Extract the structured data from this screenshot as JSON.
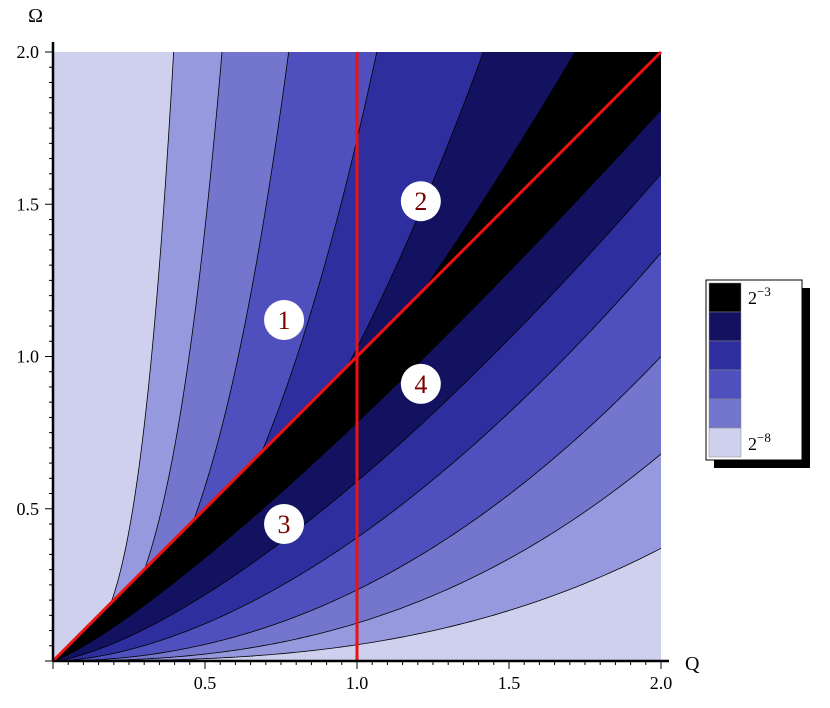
{
  "chart_data": {
    "type": "contour",
    "xlabel": "Q",
    "ylabel": "Ω",
    "xlim": [
      0,
      2.0
    ],
    "ylim": [
      0,
      2.0
    ],
    "x_ticks": [
      "0.5",
      "1.0",
      "1.5",
      "2.0"
    ],
    "y_ticks": [
      "0.5",
      "1.0",
      "1.5",
      "2.0"
    ],
    "contour_levels_log2": [
      -8,
      -7,
      -6,
      -5,
      -4,
      -3
    ],
    "colors": [
      "#cfd0ee",
      "#9799df",
      "#7475cc",
      "#4f50bd",
      "#2e2e9e",
      "#121260",
      "#000000"
    ],
    "lines": [
      {
        "type": "diagonal",
        "equation": "Ω = Q",
        "color": "#ee1111"
      },
      {
        "type": "vertical",
        "equation": "Q = 1.0",
        "color": "#ee1111"
      }
    ],
    "regions": [
      {
        "label": "1",
        "q": 0.76,
        "omega": 1.12
      },
      {
        "label": "2",
        "q": 1.21,
        "omega": 1.51
      },
      {
        "label": "3",
        "q": 0.76,
        "omega": 0.45
      },
      {
        "label": "4",
        "q": 1.21,
        "omega": 0.91
      }
    ],
    "legend": {
      "placement": "right",
      "top_label_base": "2",
      "top_label_exp": "−3",
      "bottom_label_base": "2",
      "bottom_label_exp": "−8"
    }
  }
}
